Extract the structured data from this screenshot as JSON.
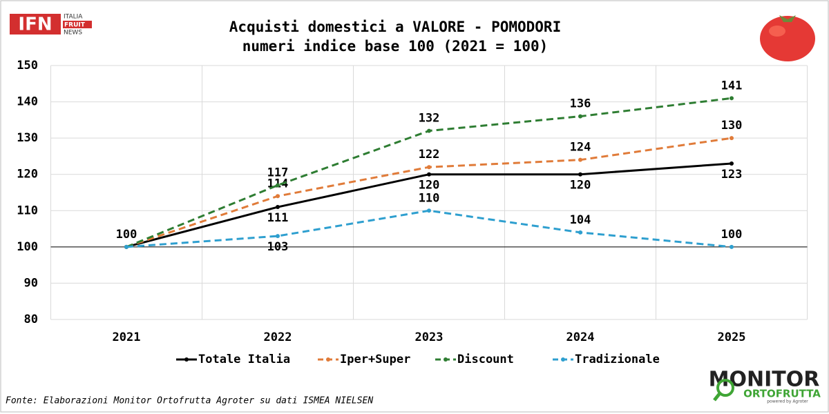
{
  "chart_data": {
    "type": "line",
    "title": "Acquisti domestici a VALORE - POMODORI",
    "subtitle": "numeri indice base 100 (2021 = 100)",
    "categories": [
      "2021",
      "2022",
      "2023",
      "2024",
      "2025"
    ],
    "series": [
      {
        "name": "Totale Italia",
        "color": "#000000",
        "line_style": "solid",
        "values": [
          100,
          111,
          120,
          120,
          123
        ]
      },
      {
        "name": "Iper+Super",
        "color": "#e07b39",
        "line_style": "dashed",
        "values": [
          100,
          114,
          122,
          124,
          130
        ]
      },
      {
        "name": "Discount",
        "color": "#2e7d32",
        "line_style": "dashed",
        "values": [
          100,
          117,
          132,
          136,
          141
        ]
      },
      {
        "name": "Tradizionale",
        "color": "#2e9fcf",
        "line_style": "dashed",
        "values": [
          100,
          103,
          110,
          104,
          100
        ]
      }
    ],
    "ylim": [
      80,
      150
    ],
    "yticks": [
      80,
      90,
      100,
      110,
      120,
      130,
      140,
      150
    ],
    "base_line": 100,
    "grid": true,
    "legend": "bottom",
    "source": "Fonte: Elaborazioni Monitor Ortofrutta Agroter su dati ISMEA NIELSEN",
    "logos": {
      "ifn": "IFN",
      "ifn_lines": [
        "ITALIA",
        "FRUIT",
        "NEWS"
      ],
      "monitor": "MONITOR",
      "ortofrutta": "ORTOFRUTTA",
      "powered": "powered by Agroter"
    }
  }
}
